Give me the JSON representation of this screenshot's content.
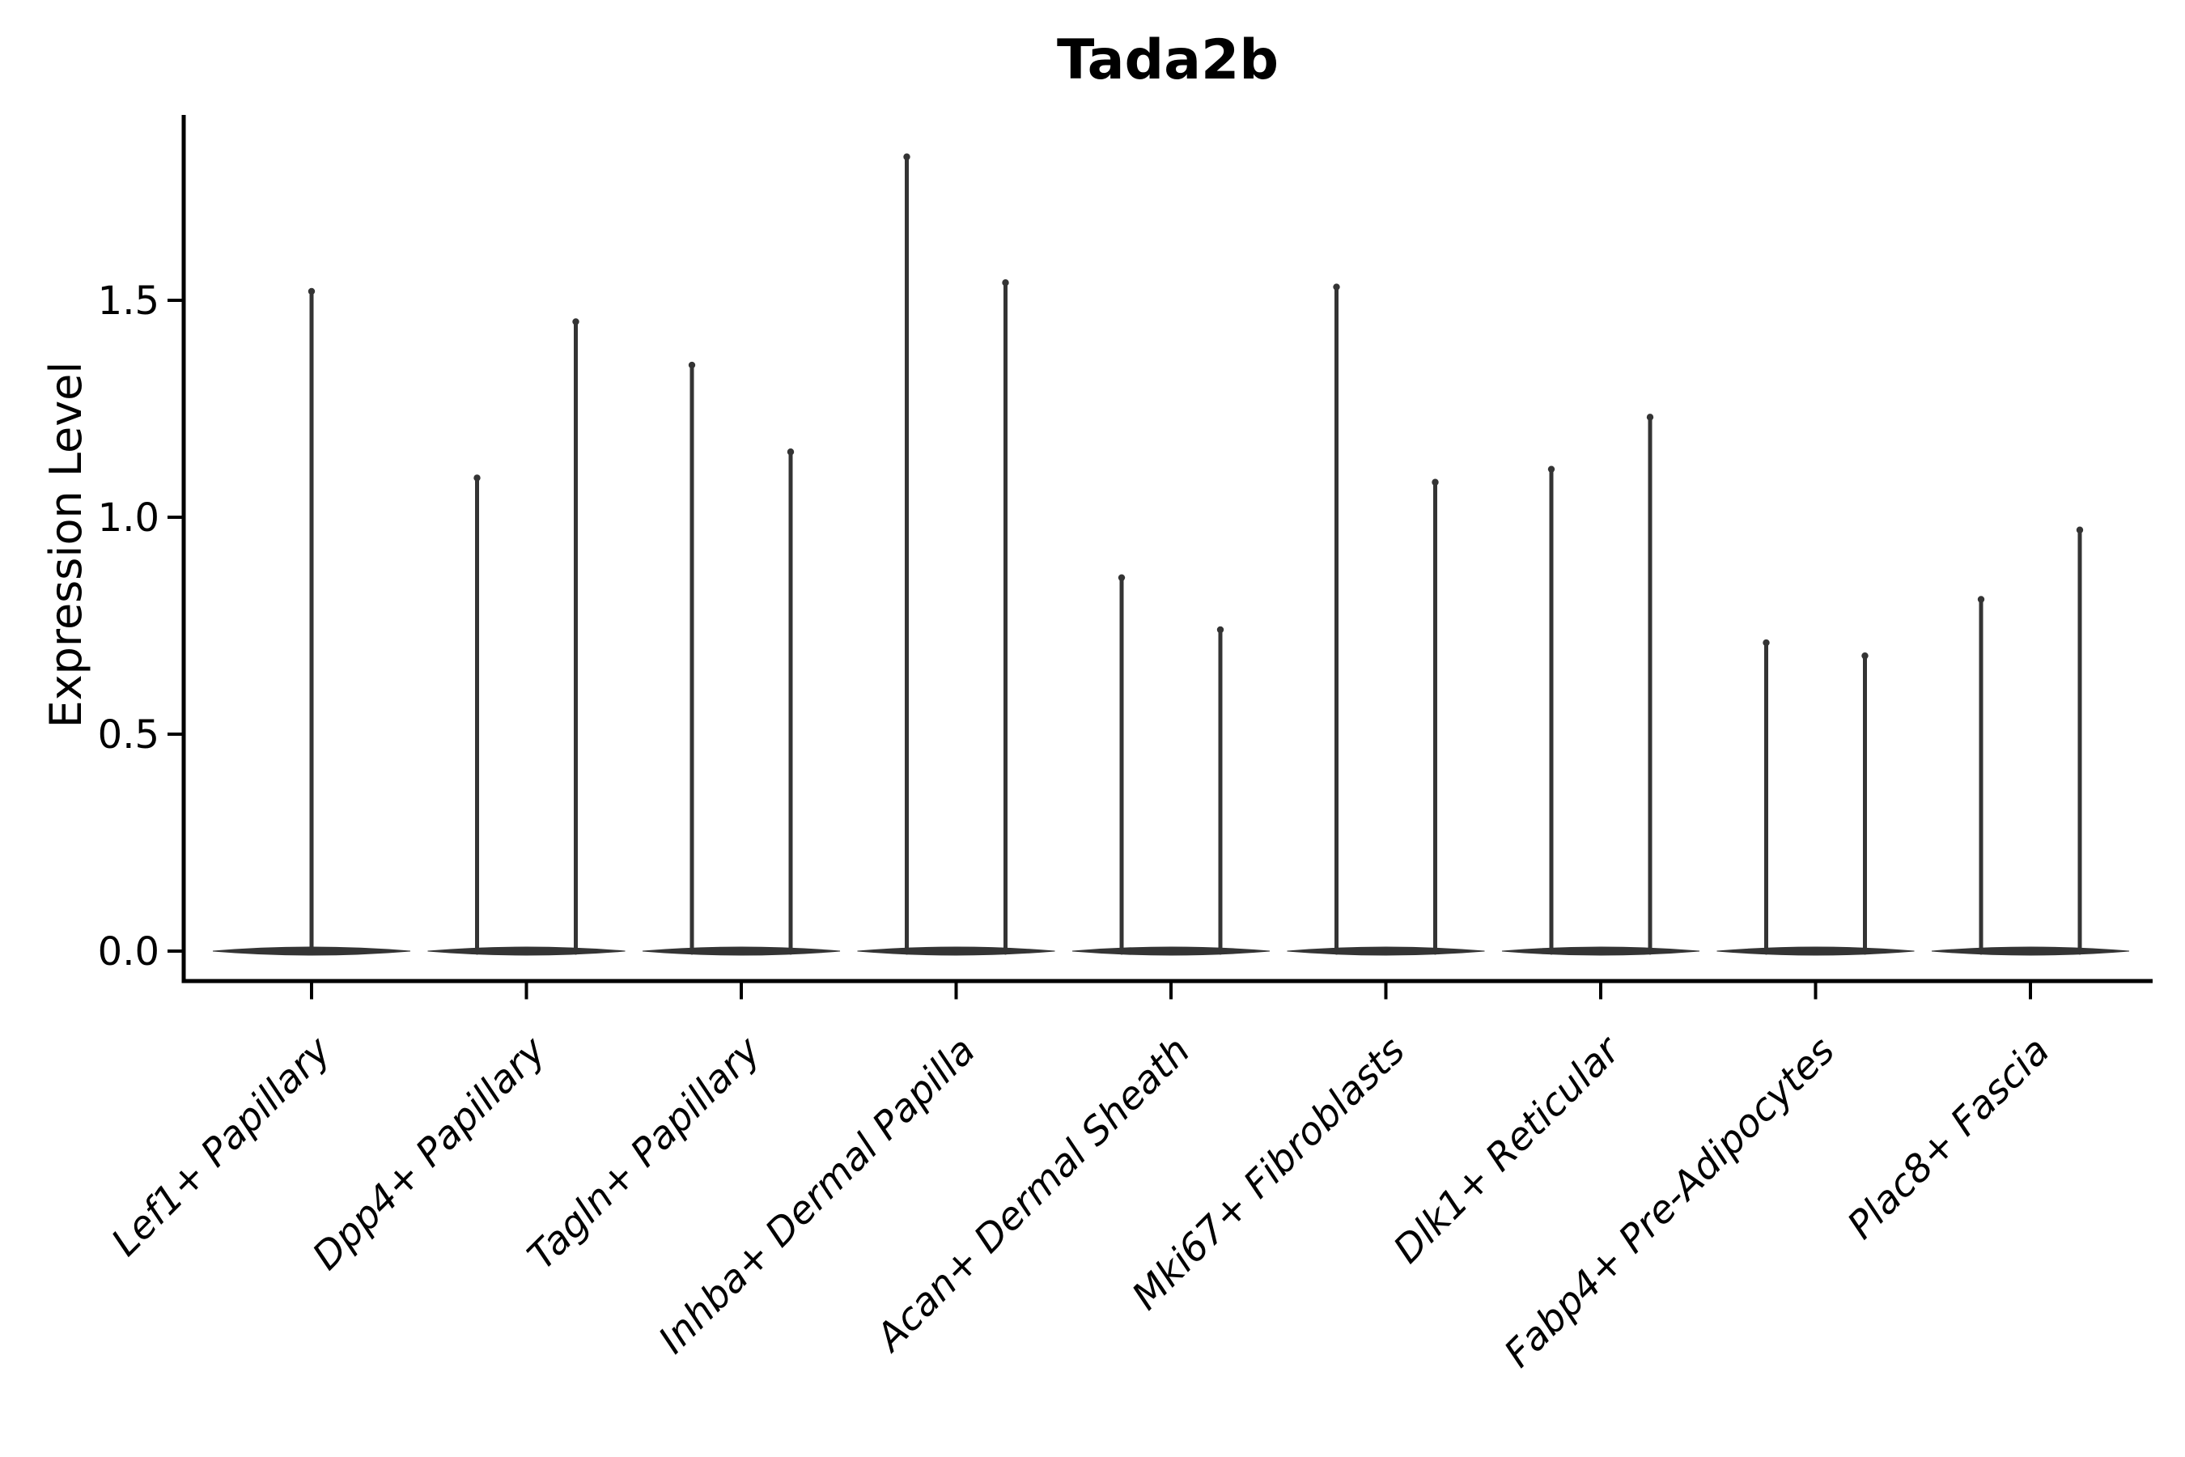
{
  "chart_data": {
    "type": "violin",
    "title": "Tada2b",
    "ylabel": "Expression Level",
    "xlabel": "",
    "background_color": "#ffffff",
    "violin_color": "#343434",
    "axis_color": "#000000",
    "text_color": "#000000",
    "grid": false,
    "legend": "none",
    "ylim": [
      -0.07,
      1.93
    ],
    "yticks": [
      0.0,
      0.5,
      1.0,
      1.5
    ],
    "ytick_labels": [
      "0.0",
      "0.5",
      "1.0",
      "1.5"
    ],
    "categories": [
      "Lef1+ Papillary",
      "Dpp4+ Papillary",
      "Tagln+ Papillary",
      "Inhba+ Dermal Papilla",
      "Acan+ Dermal Sheath",
      "Mki67+ Fibroblasts",
      "Dlk1+ Reticular",
      "Fabp4+ Pre-Adipocytes",
      "Plac8+ Fascia"
    ],
    "series": [
      {
        "category": "Lef1+ Papillary",
        "violins": [
          {
            "position": "center",
            "min": 0.0,
            "max": 1.53
          }
        ]
      },
      {
        "category": "Dpp4+ Papillary",
        "violins": [
          {
            "position": "left",
            "min": 0.0,
            "max": 1.1
          },
          {
            "position": "right",
            "min": 0.0,
            "max": 1.46
          }
        ]
      },
      {
        "category": "Tagln+ Papillary",
        "violins": [
          {
            "position": "left",
            "min": 0.0,
            "max": 1.36
          },
          {
            "position": "right",
            "min": 0.0,
            "max": 1.16
          }
        ]
      },
      {
        "category": "Inhba+ Dermal Papilla",
        "violins": [
          {
            "position": "left",
            "min": 0.0,
            "max": 1.84
          },
          {
            "position": "right",
            "min": 0.0,
            "max": 1.55
          }
        ]
      },
      {
        "category": "Acan+ Dermal Sheath",
        "violins": [
          {
            "position": "left",
            "min": 0.0,
            "max": 0.87
          },
          {
            "position": "right",
            "min": 0.0,
            "max": 0.75
          }
        ]
      },
      {
        "category": "Mki67+ Fibroblasts",
        "violins": [
          {
            "position": "left",
            "min": 0.0,
            "max": 1.54
          },
          {
            "position": "right",
            "min": 0.0,
            "max": 1.09
          }
        ]
      },
      {
        "category": "Dlk1+ Reticular",
        "violins": [
          {
            "position": "left",
            "min": 0.0,
            "max": 1.12
          },
          {
            "position": "right",
            "min": 0.0,
            "max": 1.24
          }
        ]
      },
      {
        "category": "Fabp4+ Pre-Adipocytes",
        "violins": [
          {
            "position": "left",
            "min": 0.0,
            "max": 0.72
          },
          {
            "position": "right",
            "min": 0.0,
            "max": 0.69
          }
        ]
      },
      {
        "category": "Plac8+ Fascia",
        "violins": [
          {
            "position": "left",
            "min": 0.0,
            "max": 0.82
          },
          {
            "position": "right",
            "min": 0.0,
            "max": 0.98
          }
        ]
      }
    ],
    "violin_shape_note": "density concentrated at 0 (wide flat base) with thin spike to max"
  }
}
